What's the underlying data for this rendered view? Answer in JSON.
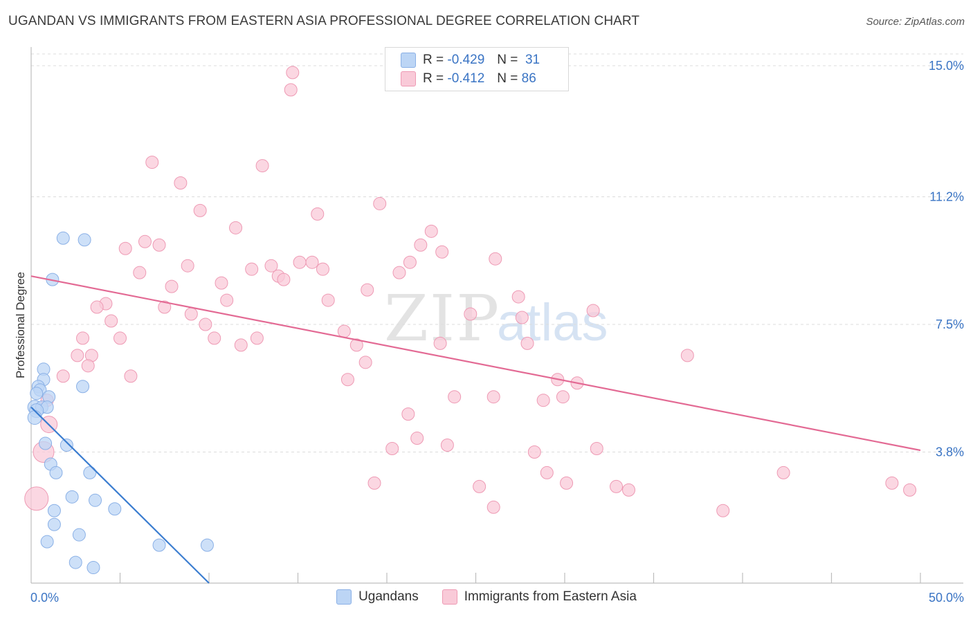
{
  "chart_data": {
    "type": "scatter",
    "title": "UGANDAN VS IMMIGRANTS FROM EASTERN ASIA PROFESSIONAL DEGREE CORRELATION CHART",
    "source": "Source: ZipAtlas.com",
    "ylabel": "Professional Degree",
    "xlim": [
      0,
      50
    ],
    "ylim": [
      0,
      15.4
    ],
    "x_tick_labels": [
      "0.0%",
      "50.0%"
    ],
    "y_ticks": [
      {
        "value": 15.0,
        "label": "15.0%"
      },
      {
        "value": 11.2,
        "label": "11.2%"
      },
      {
        "value": 7.5,
        "label": "7.5%"
      },
      {
        "value": 3.8,
        "label": "3.8%"
      }
    ],
    "watermark": {
      "part1": "ZIP",
      "part2": "atlas"
    },
    "colors": {
      "blue_fill": "#bcd5f5",
      "blue_stroke": "#8ab0e6",
      "blue_line": "#3b7dd0",
      "pink_fill": "#f9cad8",
      "pink_stroke": "#ee9ab4",
      "pink_line": "#e36a94",
      "tick_label": "#3a74c4",
      "grid": "#dcdcdc"
    },
    "legend": {
      "rows": [
        {
          "r_label": "R =",
          "r_value": "-0.429",
          "n_label": "N =",
          "n_value": "31"
        },
        {
          "r_label": "R =",
          "r_value": "-0.412",
          "n_label": "N =",
          "n_value": "86"
        }
      ]
    },
    "series": [
      {
        "name": "Ugandans",
        "trend": {
          "x0": 0,
          "y0": 5.1,
          "x1": 10,
          "y1": 0.0
        },
        "points": [
          [
            1.8,
            10.0
          ],
          [
            3.0,
            9.95
          ],
          [
            1.2,
            8.8
          ],
          [
            0.7,
            6.2
          ],
          [
            0.7,
            5.9
          ],
          [
            0.4,
            5.7
          ],
          [
            0.5,
            5.6
          ],
          [
            2.9,
            5.7
          ],
          [
            0.3,
            5.5
          ],
          [
            1.0,
            5.4
          ],
          [
            0.2,
            5.1
          ],
          [
            0.6,
            5.1
          ],
          [
            0.9,
            5.1
          ],
          [
            0.3,
            5.0
          ],
          [
            0.2,
            4.8
          ],
          [
            0.8,
            4.05
          ],
          [
            2.0,
            4.0
          ],
          [
            1.1,
            3.45
          ],
          [
            1.4,
            3.2
          ],
          [
            3.3,
            3.2
          ],
          [
            2.3,
            2.5
          ],
          [
            3.6,
            2.4
          ],
          [
            1.3,
            2.1
          ],
          [
            4.7,
            2.15
          ],
          [
            1.3,
            1.7
          ],
          [
            2.7,
            1.4
          ],
          [
            0.9,
            1.2
          ],
          [
            7.2,
            1.1
          ],
          [
            9.9,
            1.1
          ],
          [
            2.5,
            0.6
          ],
          [
            3.5,
            0.45
          ]
        ]
      },
      {
        "name": "Immigrants from Eastern Asia",
        "trend": {
          "x0": 0,
          "y0": 8.9,
          "x1": 50,
          "y1": 3.85
        },
        "points": [
          [
            14.7,
            14.8
          ],
          [
            14.6,
            14.3
          ],
          [
            6.8,
            12.2
          ],
          [
            13.0,
            12.1
          ],
          [
            8.4,
            11.6
          ],
          [
            9.5,
            10.8
          ],
          [
            16.1,
            10.7
          ],
          [
            19.6,
            11.0
          ],
          [
            11.5,
            10.3
          ],
          [
            22.5,
            10.2
          ],
          [
            6.4,
            9.9
          ],
          [
            7.2,
            9.8
          ],
          [
            5.3,
            9.7
          ],
          [
            21.9,
            9.8
          ],
          [
            23.1,
            9.6
          ],
          [
            26.1,
            9.4
          ],
          [
            15.1,
            9.3
          ],
          [
            15.8,
            9.3
          ],
          [
            8.8,
            9.2
          ],
          [
            13.5,
            9.2
          ],
          [
            12.4,
            9.1
          ],
          [
            16.4,
            9.1
          ],
          [
            6.1,
            9.0
          ],
          [
            20.7,
            9.0
          ],
          [
            21.3,
            9.3
          ],
          [
            13.9,
            8.9
          ],
          [
            14.2,
            8.8
          ],
          [
            10.7,
            8.7
          ],
          [
            7.9,
            8.6
          ],
          [
            18.9,
            8.5
          ],
          [
            27.4,
            8.3
          ],
          [
            11.0,
            8.2
          ],
          [
            16.7,
            8.2
          ],
          [
            4.2,
            8.1
          ],
          [
            3.7,
            8.0
          ],
          [
            7.5,
            8.0
          ],
          [
            31.6,
            7.9
          ],
          [
            9.0,
            7.8
          ],
          [
            24.7,
            7.8
          ],
          [
            27.6,
            7.7
          ],
          [
            4.5,
            7.6
          ],
          [
            9.8,
            7.5
          ],
          [
            17.6,
            7.3
          ],
          [
            5.0,
            7.1
          ],
          [
            2.9,
            7.1
          ],
          [
            10.3,
            7.1
          ],
          [
            12.7,
            7.1
          ],
          [
            23.0,
            6.95
          ],
          [
            27.9,
            6.95
          ],
          [
            11.8,
            6.9
          ],
          [
            18.3,
            6.9
          ],
          [
            2.6,
            6.6
          ],
          [
            3.4,
            6.6
          ],
          [
            36.9,
            6.6
          ],
          [
            18.8,
            6.4
          ],
          [
            3.2,
            6.3
          ],
          [
            1.8,
            6.0
          ],
          [
            5.6,
            6.0
          ],
          [
            17.8,
            5.9
          ],
          [
            29.6,
            5.9
          ],
          [
            30.7,
            5.8
          ],
          [
            0.9,
            5.3
          ],
          [
            23.8,
            5.4
          ],
          [
            26.0,
            5.4
          ],
          [
            28.8,
            5.3
          ],
          [
            29.9,
            5.4
          ],
          [
            21.2,
            4.9
          ],
          [
            1.0,
            4.6
          ],
          [
            21.7,
            4.2
          ],
          [
            0.7,
            3.8
          ],
          [
            20.3,
            3.9
          ],
          [
            23.4,
            4.0
          ],
          [
            31.8,
            3.9
          ],
          [
            28.3,
            3.8
          ],
          [
            29.0,
            3.2
          ],
          [
            42.3,
            3.2
          ],
          [
            19.3,
            2.9
          ],
          [
            25.2,
            2.8
          ],
          [
            30.1,
            2.9
          ],
          [
            32.9,
            2.8
          ],
          [
            33.6,
            2.7
          ],
          [
            48.4,
            2.9
          ],
          [
            49.4,
            2.7
          ],
          [
            0.3,
            2.45
          ],
          [
            26.0,
            2.2
          ],
          [
            38.9,
            2.1
          ]
        ]
      }
    ]
  }
}
